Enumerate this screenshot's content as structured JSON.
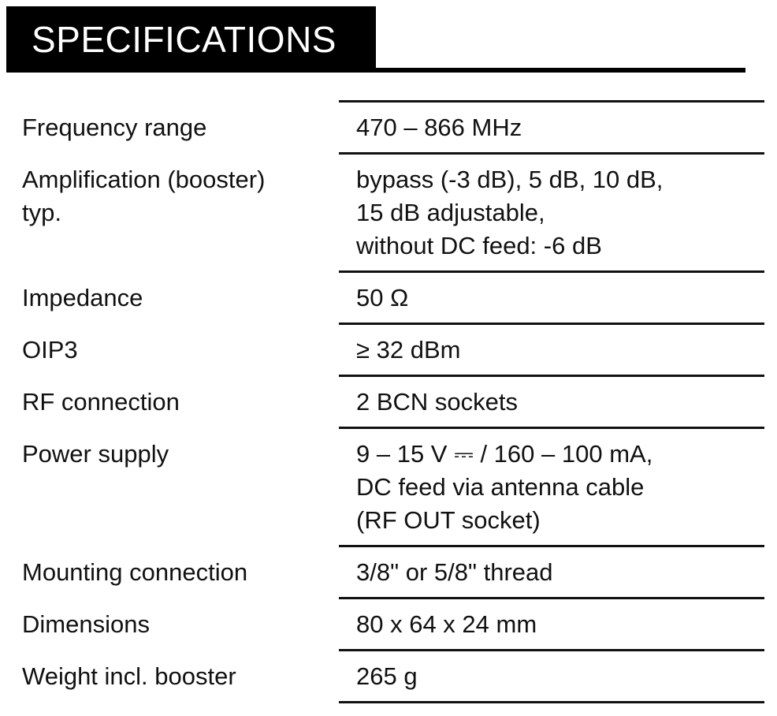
{
  "header": {
    "title": "SPECIFICATIONS"
  },
  "specs": [
    {
      "label": [
        "Frequency range"
      ],
      "value": [
        "470 – 866 MHz"
      ]
    },
    {
      "label": [
        "Amplification (booster)",
        "typ."
      ],
      "value": [
        "bypass (-3 dB), 5 dB, 10 dB,",
        "15 dB adjustable,",
        "without DC feed: -6 dB"
      ]
    },
    {
      "label": [
        "Impedance"
      ],
      "value": [
        "50 Ω"
      ]
    },
    {
      "label": [
        "OIP3"
      ],
      "value": [
        "≥ 32 dBm"
      ]
    },
    {
      "label": [
        "RF connection"
      ],
      "value": [
        "2 BCN sockets"
      ]
    },
    {
      "label": [
        "Power supply"
      ],
      "value": [
        "9 – 15 V ⎓ / 160 – 100 mA,",
        "DC feed via antenna cable",
        "(RF OUT socket)"
      ]
    },
    {
      "label": [
        "Mounting connection"
      ],
      "value": [
        "3/8\" or 5/8\" thread"
      ]
    },
    {
      "label": [
        "Dimensions"
      ],
      "value": [
        "80 x 64 x 24 mm"
      ]
    },
    {
      "label": [
        "Weight incl. booster"
      ],
      "value": [
        "265 g"
      ]
    }
  ]
}
